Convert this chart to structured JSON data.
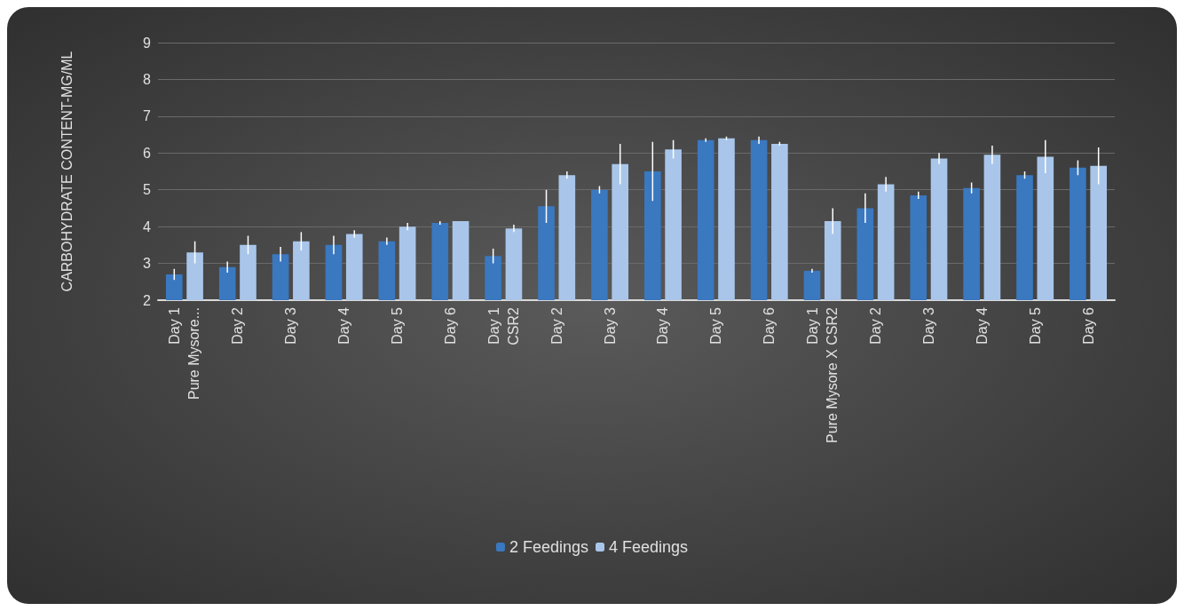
{
  "chart_data": {
    "type": "bar",
    "ylabel": "CARBOHYDRATE CONTENT-MG/ML",
    "categories": [
      "Day 1\nPure Mysore...",
      "Day 2",
      "Day 3",
      "Day 4",
      "Day 5",
      "Day 6",
      "Day 1\nCSR2",
      "Day 2",
      "Day 3",
      "Day 4",
      "Day 5",
      "Day 6",
      "Day 1\nPure Mysore X CSR2",
      "Day 2",
      "Day 3",
      "Day 4",
      "Day 5",
      "Day 6"
    ],
    "series": [
      {
        "name": "2 Feedings",
        "color": "#3a78c0",
        "values": [
          2.7,
          2.9,
          3.25,
          3.5,
          3.6,
          4.1,
          3.2,
          4.55,
          5.0,
          5.5,
          6.35,
          6.35,
          2.8,
          4.5,
          4.85,
          5.05,
          5.4,
          5.6
        ],
        "errors": [
          0.15,
          0.15,
          0.2,
          0.25,
          0.1,
          0.05,
          0.2,
          0.45,
          0.1,
          0.8,
          0.05,
          0.1,
          0.05,
          0.4,
          0.1,
          0.15,
          0.1,
          0.2
        ]
      },
      {
        "name": "4 Feedings",
        "color": "#a9c6ea",
        "values": [
          3.3,
          3.5,
          3.6,
          3.8,
          4.0,
          4.15,
          3.95,
          5.4,
          5.7,
          6.1,
          6.4,
          6.25,
          4.15,
          5.15,
          5.85,
          5.95,
          5.9,
          5.65
        ],
        "errors": [
          0.3,
          0.25,
          0.25,
          0.1,
          0.1,
          null,
          0.1,
          0.1,
          0.55,
          0.25,
          0.05,
          0.05,
          0.35,
          0.2,
          0.15,
          0.25,
          0.45,
          0.5
        ]
      }
    ],
    "ylim": [
      2,
      9
    ],
    "yticks": [
      2,
      3,
      4,
      5,
      6,
      7,
      8,
      9
    ],
    "grid": "y",
    "legend": "bottom"
  }
}
